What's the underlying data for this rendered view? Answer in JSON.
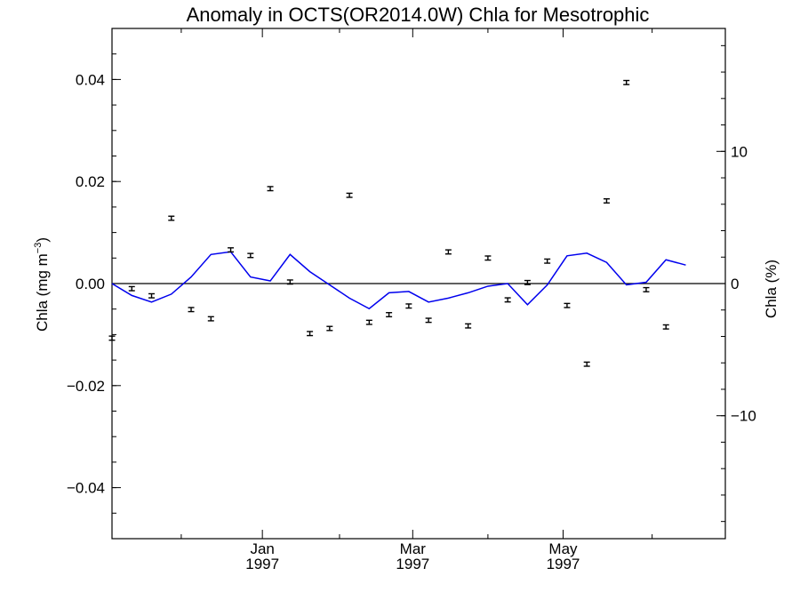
{
  "chart_data": {
    "type": "scatter",
    "title": "Anomaly in OCTS(OR2014.0W) Chla for Mesotrophic",
    "ylabel_left": {
      "text": "Chla (mg m",
      "superscript": "−3",
      "suffix": ")"
    },
    "ylabel_right": "Chla (%)",
    "xlim": [
      0,
      31
    ],
    "ylim_left": [
      -0.05,
      0.05
    ],
    "ylim_right": [
      -19.3,
      19.3
    ],
    "left_ticks": [
      {
        "value": -0.04,
        "label": "−0.04"
      },
      {
        "value": -0.02,
        "label": "−0.02"
      },
      {
        "value": 0.0,
        "label": "0.00"
      },
      {
        "value": 0.02,
        "label": "0.02"
      },
      {
        "value": 0.04,
        "label": "0.04"
      }
    ],
    "right_ticks": [
      {
        "value": -10,
        "label": "−10"
      },
      {
        "value": 0,
        "label": "0"
      },
      {
        "value": 10,
        "label": "10"
      }
    ],
    "x_major_ticks": [
      {
        "value": 7.6,
        "month": "Jan",
        "year": "1997"
      },
      {
        "value": 15.2,
        "month": "Mar",
        "year": "1997"
      },
      {
        "value": 22.8,
        "month": "May",
        "year": "1997"
      }
    ],
    "x_minor_ticks": [
      3.5,
      11.5,
      19.0,
      27.3
    ],
    "zero_line": 0,
    "series": [
      {
        "kind": "points_with_errorbars",
        "color": "#000000",
        "x": [
          0,
          1,
          2,
          3,
          4,
          5,
          6,
          7,
          8,
          9,
          10,
          11,
          12,
          13,
          14,
          15,
          16,
          17,
          18,
          19,
          20,
          21,
          22,
          23,
          24,
          25,
          26,
          27,
          28,
          29,
          30
        ],
        "y": [
          -0.0107,
          -0.001,
          -0.0024,
          0.0128,
          -0.0051,
          -0.0069,
          0.0066,
          0.0055,
          0.0186,
          0.0003,
          -0.0098,
          -0.0088,
          0.0173,
          -0.0076,
          -0.0061,
          -0.0044,
          -0.0072,
          0.0062,
          -0.0083,
          0.005,
          -0.0032,
          0.0002,
          0.0044,
          -0.0043,
          -0.0158,
          0.0162,
          0.0394,
          -0.0012,
          -0.0085,
          null,
          null
        ],
        "err": 0.0004
      },
      {
        "kind": "line",
        "axis": "right",
        "color": "#0000ee",
        "x": [
          0,
          1,
          2,
          3,
          4,
          5,
          6,
          7,
          8,
          9,
          10,
          11,
          12,
          13,
          14,
          15,
          16,
          17,
          18,
          19,
          20,
          21,
          22,
          23,
          24,
          25,
          26,
          27,
          28,
          29,
          30,
          31
        ],
        "y": [
          0,
          -0.9,
          -1.4,
          -0.8,
          0.5,
          2.2,
          2.4,
          0.5,
          0.2,
          2.2,
          0.9,
          -0.1,
          -1.1,
          -1.9,
          -0.7,
          -0.6,
          -1.4,
          -1.1,
          -0.7,
          -0.2,
          0.0,
          -1.6,
          -0.1,
          2.1,
          2.3,
          1.6,
          -0.1,
          0.1,
          1.8,
          1.4,
          null,
          null
        ]
      }
    ]
  }
}
